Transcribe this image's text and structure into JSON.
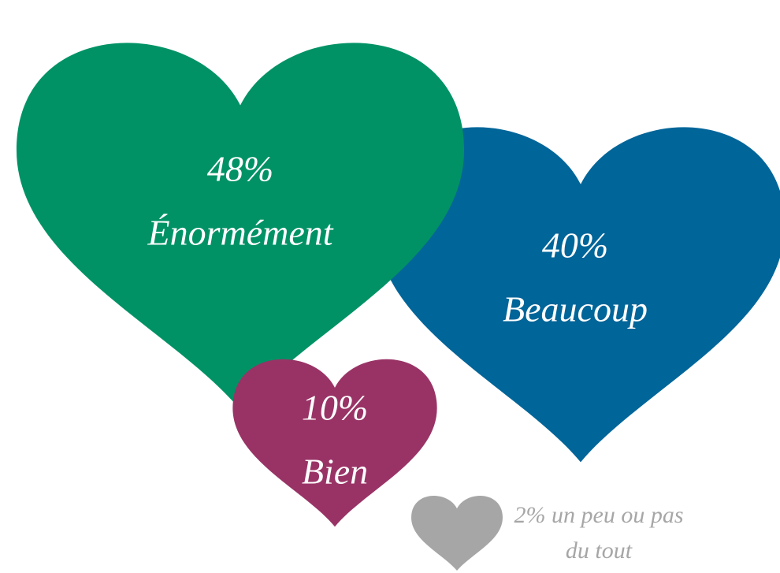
{
  "chart_data": {
    "type": "heart",
    "categories": [
      "Énormément",
      "Beaucoup",
      "Bien",
      "un peu ou pas du tout"
    ],
    "values": [
      48,
      40,
      10,
      2
    ],
    "value_labels": [
      "48%",
      "40%",
      "10%",
      "2%"
    ],
    "colors": [
      "#009265",
      "#006599",
      "#993366",
      "#a6a6a6"
    ]
  }
}
